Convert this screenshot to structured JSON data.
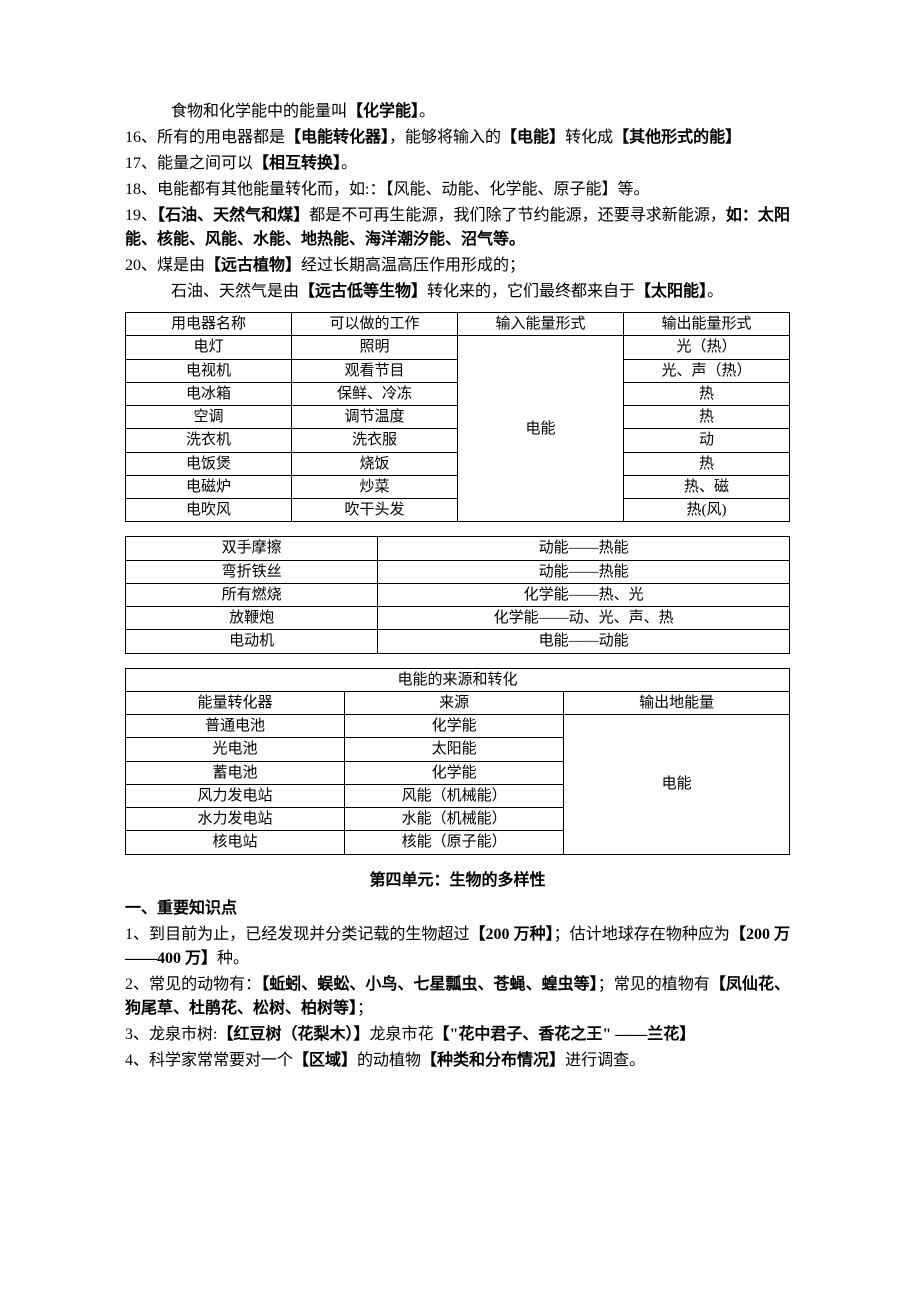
{
  "lines": {
    "l0": "食物和化学能中的能量叫",
    "l0b1": "【化学能】",
    "l0end": "。",
    "l16a": "16、所有的用电器都是",
    "l16b1": "【电能转化器】",
    "l16mid1": "，能够将输入的",
    "l16b2": "【电能】",
    "l16mid2": "转化成",
    "l16b3": "【其他形式的能】",
    "l17a": "17、能量之间可以",
    "l17b1": "【相互转换】",
    "l17end": "。",
    "l18a": "18、电能都有其他能量转化而，如:：【风能、动能、化学能、原子能】等。",
    "l19a": "19、",
    "l19b1": "【石油、天然气和煤】",
    "l19mid": "都是不可再生能源，我们除了节约能源，还要寻求新能源，",
    "l19b2": "如：太阳能、核能、风能、水能、地热能、海洋潮汐能、沼气等。",
    "l20a": "20、煤是由",
    "l20b1": "【远古植物】",
    "l20mid1": "经过长期高温高压作用形成的；",
    "l20c": "石油、天然气是由",
    "l20b2": "【远古低等生物】",
    "l20mid2": "转化来的，它们最终都来自于",
    "l20b3": "【太阳能】",
    "l20end": "。"
  },
  "table1": {
    "head": [
      "用电器名称",
      "可以做的工作",
      "输入能量形式",
      "输出能量形式"
    ],
    "input": "电能",
    "rows": [
      {
        "n": "电灯",
        "w": "照明",
        "o": "光（热）"
      },
      {
        "n": "电视机",
        "w": "观看节目",
        "o": "光、声（热）"
      },
      {
        "n": "电冰箱",
        "w": "保鲜、冷冻",
        "o": "热"
      },
      {
        "n": "空调",
        "w": "调节温度",
        "o": "热"
      },
      {
        "n": "洗衣机",
        "w": "洗衣服",
        "o": "动"
      },
      {
        "n": "电饭煲",
        "w": "烧饭",
        "o": "热"
      },
      {
        "n": "电磁炉",
        "w": "炒菜",
        "o": "热、磁"
      },
      {
        "n": "电吹风",
        "w": "吹干头发",
        "o": "热(风)"
      }
    ]
  },
  "table2": {
    "rows": [
      {
        "a": "双手摩擦",
        "b": "动能——热能"
      },
      {
        "a": "弯折铁丝",
        "b": "动能——热能"
      },
      {
        "a": "所有燃烧",
        "b": "化学能——热、光"
      },
      {
        "a": "放鞭炮",
        "b": "化学能——动、光、声、热"
      },
      {
        "a": "电动机",
        "b": "电能——动能"
      }
    ]
  },
  "table3": {
    "title": "电能的来源和转化",
    "head": [
      "能量转化器",
      "来源",
      "输出地能量"
    ],
    "out": "电能",
    "rows": [
      {
        "n": "普通电池",
        "s": "化学能"
      },
      {
        "n": "光电池",
        "s": "太阳能"
      },
      {
        "n": "蓄电池",
        "s": "化学能"
      },
      {
        "n": "风力发电站",
        "s": "风能（机械能）"
      },
      {
        "n": "水力发电站",
        "s": "水能（机械能）"
      },
      {
        "n": "核电站",
        "s": "核能（原子能）"
      }
    ]
  },
  "section4": {
    "title": "第四单元：生物的多样性",
    "heading": "一、重要知识点",
    "p1a": "1、到目前为止，已经发现并分类记载的生物超过",
    "p1b1": "【200 万种】",
    "p1mid": "；估计地球存在物种应为",
    "p1b2": "【200 万——400 万】",
    "p1end": "种。",
    "p2a": "2、常见的动物有：",
    "p2b1": "【蚯蚓、蜈蚣、小鸟、七星瓢虫、苍蝇、蝗虫等】",
    "p2mid": "；常见的植物有",
    "p2b2": "【凤仙花、狗尾草、杜鹃花、松树、柏树等】",
    "p2end": "；",
    "p3a": "3、龙泉市树:",
    "p3b1": "【红豆树（花梨木）】",
    "p3mid1": "龙泉市花",
    "p3b2": "【\"花中君子、香花之王\" ——兰花】",
    "p4a": "4、科学家常常要对一个",
    "p4b1": "【区域】",
    "p4mid": "的动植物",
    "p4b2": "【种类和分布情况】",
    "p4end": "进行调查。"
  }
}
